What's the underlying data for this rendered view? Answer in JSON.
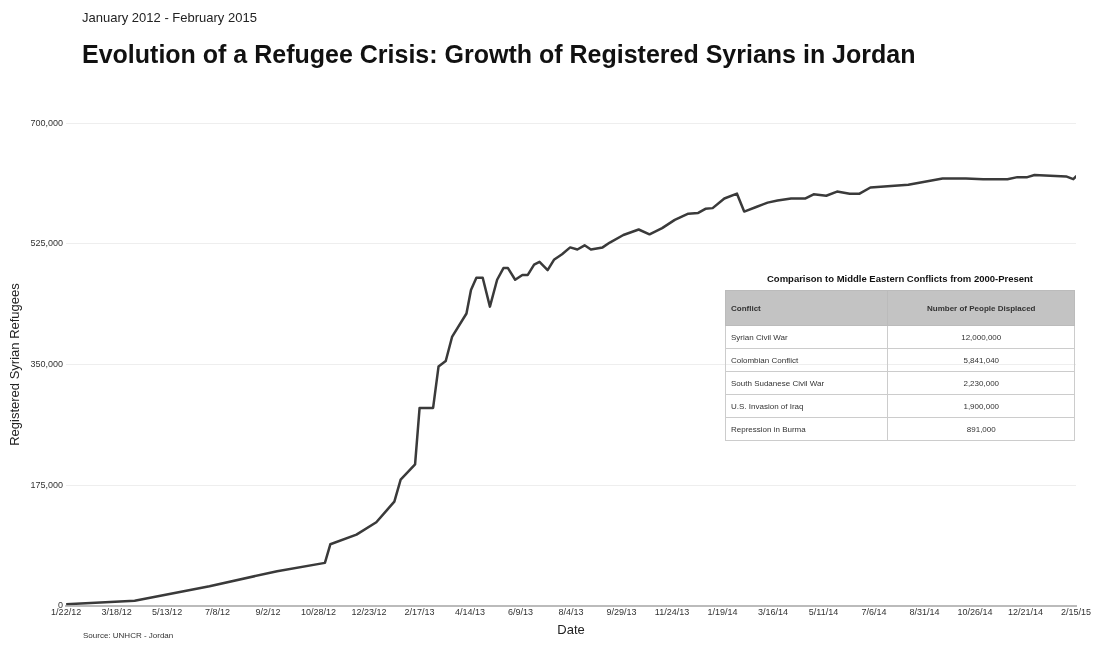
{
  "chart_data": [
    {
      "type": "line",
      "subtitle": "January 2012 - February 2015",
      "title": "Evolution of a Refugee Crisis: Growth of Registered Syrians in Jordan",
      "xlabel": "Date",
      "ylabel": "Registered Syrian Refugees",
      "annotations": [
        "Source: UNHCR - Jordan"
      ],
      "grid": "y",
      "marker": "none",
      "line_style": "solid",
      "x": [
        "2012-01-22",
        "2012-04-07",
        "2012-06-29",
        "2012-09-12",
        "2012-11-04",
        "2012-11-10",
        "2012-12-09",
        "2012-12-31",
        "2013-01-12",
        "2013-01-20",
        "2013-01-27",
        "2013-02-12",
        "2013-02-17",
        "2013-03-04",
        "2013-03-10",
        "2013-03-18",
        "2013-03-25",
        "2013-04-10",
        "2013-04-15",
        "2013-04-21",
        "2013-04-28",
        "2013-05-06",
        "2013-05-14",
        "2013-05-21",
        "2013-05-26",
        "2013-06-03",
        "2013-06-11",
        "2013-06-17",
        "2013-06-24",
        "2013-06-30",
        "2013-07-09",
        "2013-07-16",
        "2013-07-25",
        "2013-08-03",
        "2013-08-11",
        "2013-08-19",
        "2013-08-26",
        "2013-09-08",
        "2013-09-16",
        "2013-10-01",
        "2013-10-18",
        "2013-10-30",
        "2013-11-13",
        "2013-11-27",
        "2013-12-12",
        "2013-12-23",
        "2013-12-31",
        "2014-01-08",
        "2014-01-21",
        "2014-02-04",
        "2014-02-12",
        "2014-02-26",
        "2014-03-10",
        "2014-03-21",
        "2014-04-05",
        "2014-04-21",
        "2014-04-30",
        "2014-05-14",
        "2014-05-26",
        "2014-06-09",
        "2014-06-20",
        "2014-07-02",
        "2014-08-13",
        "2014-09-20",
        "2014-10-16",
        "2014-11-04",
        "2014-12-01",
        "2014-12-12",
        "2014-12-23",
        "2014-12-31",
        "2015-02-04",
        "2015-02-12",
        "2015-02-15"
      ],
      "series": [
        {
          "color": "#3a3a3a",
          "values": [
            2000,
            7000,
            28000,
            50000,
            62000,
            89000,
            103000,
            121000,
            139000,
            151000,
            183000,
            205000,
            287000,
            287000,
            347000,
            355000,
            390000,
            424000,
            458000,
            476000,
            476000,
            434000,
            473000,
            490000,
            490000,
            473000,
            480000,
            480000,
            495000,
            499000,
            487000,
            502000,
            510000,
            520000,
            517000,
            523000,
            517000,
            520000,
            527000,
            538000,
            546000,
            539000,
            548000,
            560000,
            569000,
            570000,
            576000,
            577000,
            591000,
            598000,
            572000,
            579000,
            585000,
            588000,
            591000,
            591000,
            597000,
            595000,
            601000,
            598000,
            598000,
            607000,
            611000,
            620000,
            620000,
            619000,
            619000,
            622000,
            622000,
            625000,
            623000,
            619000,
            623000
          ]
        }
      ],
      "xlim": [
        "2012-01-22",
        "2015-02-15"
      ],
      "xticks": [
        {
          "value": "2012-01-22",
          "label": "1/22/12"
        },
        {
          "value": "2012-03-18",
          "label": "3/18/12"
        },
        {
          "value": "2012-05-13",
          "label": "5/13/12"
        },
        {
          "value": "2012-07-08",
          "label": "7/8/12"
        },
        {
          "value": "2012-09-02",
          "label": "9/2/12"
        },
        {
          "value": "2012-10-28",
          "label": "10/28/12"
        },
        {
          "value": "2012-12-23",
          "label": "12/23/12"
        },
        {
          "value": "2013-02-17",
          "label": "2/17/13"
        },
        {
          "value": "2013-04-14",
          "label": "4/14/13"
        },
        {
          "value": "2013-06-09",
          "label": "6/9/13"
        },
        {
          "value": "2013-08-04",
          "label": "8/4/13"
        },
        {
          "value": "2013-09-29",
          "label": "9/29/13"
        },
        {
          "value": "2013-11-24",
          "label": "11/24/13"
        },
        {
          "value": "2014-01-19",
          "label": "1/19/14"
        },
        {
          "value": "2014-03-16",
          "label": "3/16/14"
        },
        {
          "value": "2014-05-11",
          "label": "5/11/14"
        },
        {
          "value": "2014-07-06",
          "label": "7/6/14"
        },
        {
          "value": "2014-08-31",
          "label": "8/31/14"
        },
        {
          "value": "2014-10-26",
          "label": "10/26/14"
        },
        {
          "value": "2014-12-21",
          "label": "12/21/14"
        },
        {
          "value": "2015-02-15",
          "label": "2/15/15"
        }
      ],
      "ylim": [
        0,
        700000
      ],
      "yticks": [
        0,
        {
          "value": 175000,
          "label": "175,000"
        },
        {
          "value": 350000,
          "label": "350,000"
        },
        {
          "value": 525000,
          "label": "525,000"
        },
        {
          "value": 700000,
          "label": "700,000"
        }
      ]
    },
    {
      "type": "other",
      "title": "Comparison to Middle Eastern Conflicts from 2000-Present",
      "xlabel": "Conflict",
      "ylabel": "Number of People Displaced",
      "categories": [
        "Syrian Civil War",
        "Colombian Conflict",
        "South Sudanese Civil War",
        "U.S. Invasion of Iraq",
        "Repression in Burma"
      ],
      "value_labels": [
        "12,000,000",
        "5,841,040",
        "2,230,000",
        "1,900,000",
        "891,000"
      ]
    }
  ]
}
